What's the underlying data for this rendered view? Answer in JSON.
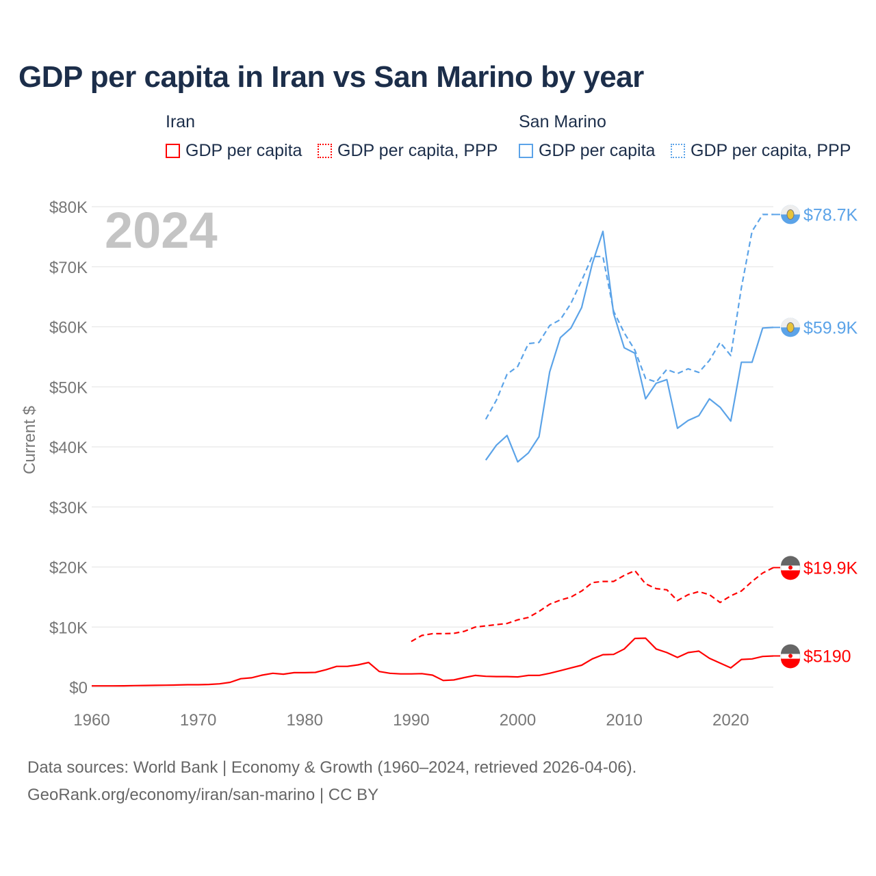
{
  "title": "GDP per capita in Iran vs San Marino by year",
  "legend": {
    "groups": [
      {
        "name": "Iran",
        "items": [
          "GDP per capita",
          "GDP per capita, PPP"
        ],
        "color": "#ff0000"
      },
      {
        "name": "San Marino",
        "items": [
          "GDP per capita",
          "GDP per capita, PPP"
        ],
        "color": "#5ba3e8"
      }
    ]
  },
  "footer": {
    "line1": "Data sources: World Bank | Economy & Growth (1960–2024, retrieved 2026-04-06).",
    "line2": "GeoRank.org/economy/iran/san-marino | CC BY"
  },
  "chart_data": {
    "type": "line",
    "title": "GDP per capita in Iran vs San Marino by year",
    "ylabel": "Current $",
    "xlabel": "",
    "year_label": "2024",
    "xlim": [
      1960,
      2024
    ],
    "ylim": [
      0,
      80000
    ],
    "x_ticks": [
      "1960",
      "1970",
      "1980",
      "1990",
      "2000",
      "2010",
      "2020"
    ],
    "y_ticks": [
      "$0",
      "$10K",
      "$20K",
      "$30K",
      "$40K",
      "$50K",
      "$60K",
      "$70K",
      "$80K"
    ],
    "grid": true,
    "series": [
      {
        "name": "Iran GDP per capita",
        "country": "Iran",
        "style": "solid",
        "color": "#ff0000",
        "end_label": "$5190",
        "start_year": 1960,
        "values": [
          200,
          200,
          210,
          220,
          250,
          270,
          300,
          320,
          350,
          400,
          400,
          450,
          550,
          800,
          1400,
          1550,
          2000,
          2300,
          2150,
          2400,
          2400,
          2450,
          2900,
          3450,
          3450,
          3700,
          4100,
          2600,
          2300,
          2200,
          2200,
          2250,
          2000,
          1100,
          1200,
          1600,
          1950,
          1800,
          1750,
          1750,
          1700,
          1950,
          1950,
          2300,
          2750,
          3200,
          3650,
          4700,
          5400,
          5450,
          6350,
          8100,
          8150,
          6350,
          5750,
          4950,
          5750,
          6000,
          4800,
          4000,
          3200,
          4600,
          4700,
          5100,
          5190
        ]
      },
      {
        "name": "Iran GDP per capita, PPP",
        "country": "Iran",
        "style": "dashed",
        "color": "#ff0000",
        "end_label": "$19.9K",
        "start_year": 1990,
        "values": [
          7600,
          8600,
          8900,
          8900,
          8950,
          9300,
          10000,
          10200,
          10400,
          10600,
          11200,
          11600,
          12600,
          13800,
          14500,
          15000,
          16000,
          17400,
          17600,
          17600,
          18600,
          19400,
          17200,
          16400,
          16200,
          14400,
          15400,
          15900,
          15400,
          14100,
          15200,
          16000,
          17600,
          19000,
          19900
        ]
      },
      {
        "name": "San Marino GDP per capita",
        "country": "San Marino",
        "style": "solid",
        "color": "#5ba3e8",
        "end_label": "$59.9K",
        "start_year": 1997,
        "values": [
          37800,
          40300,
          41900,
          37500,
          39000,
          41700,
          52500,
          58200,
          59800,
          63200,
          70500,
          75900,
          62200,
          56500,
          55600,
          48000,
          50600,
          51200,
          43100,
          44400,
          45200,
          48000,
          46600,
          44300,
          54100,
          54100,
          59800,
          59900
        ]
      },
      {
        "name": "San Marino GDP per capita, PPP",
        "country": "San Marino",
        "style": "dashed",
        "color": "#5ba3e8",
        "end_label": "$78.7K",
        "start_year": 1997,
        "values": [
          44600,
          47800,
          52100,
          53400,
          57200,
          57400,
          60200,
          61200,
          63900,
          67700,
          71700,
          71700,
          62600,
          59000,
          56100,
          51400,
          50800,
          52900,
          52200,
          53000,
          52400,
          54400,
          57400,
          55200,
          66500,
          75900,
          78700,
          78700
        ]
      }
    ]
  }
}
